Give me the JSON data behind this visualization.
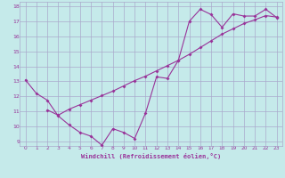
{
  "xlabel": "Windchill (Refroidissement éolien,°C)",
  "background_color": "#c5eaea",
  "grid_color": "#aaaacc",
  "line_color": "#993399",
  "xlim": [
    -0.5,
    23.5
  ],
  "ylim": [
    8.7,
    18.3
  ],
  "xticks": [
    0,
    1,
    2,
    3,
    4,
    5,
    6,
    7,
    8,
    9,
    10,
    11,
    12,
    13,
    14,
    15,
    16,
    17,
    18,
    19,
    20,
    21,
    22,
    23
  ],
  "yticks": [
    9,
    10,
    11,
    12,
    13,
    14,
    15,
    16,
    17,
    18
  ],
  "line1_x": [
    0,
    1,
    2,
    3,
    4,
    5,
    6,
    7,
    8,
    9,
    10,
    11,
    12,
    13,
    14,
    15,
    16,
    17,
    18,
    19,
    20,
    21,
    22,
    23
  ],
  "line1_y": [
    13.1,
    12.2,
    11.75,
    10.7,
    10.1,
    9.6,
    9.35,
    8.75,
    9.85,
    9.6,
    9.2,
    10.9,
    13.3,
    13.2,
    14.4,
    17.0,
    17.8,
    17.45,
    16.6,
    17.5,
    17.35,
    17.35,
    17.8,
    17.25
  ],
  "line2_x": [
    2,
    3,
    4,
    5,
    6,
    7,
    8,
    9,
    10,
    11,
    12,
    13,
    14,
    15,
    16,
    17,
    18,
    19,
    20,
    21,
    22,
    23
  ],
  "line2_y": [
    11.1,
    10.75,
    11.15,
    11.45,
    11.75,
    12.05,
    12.35,
    12.7,
    13.05,
    13.35,
    13.7,
    14.05,
    14.4,
    14.8,
    15.25,
    15.7,
    16.15,
    16.5,
    16.85,
    17.1,
    17.38,
    17.28
  ]
}
